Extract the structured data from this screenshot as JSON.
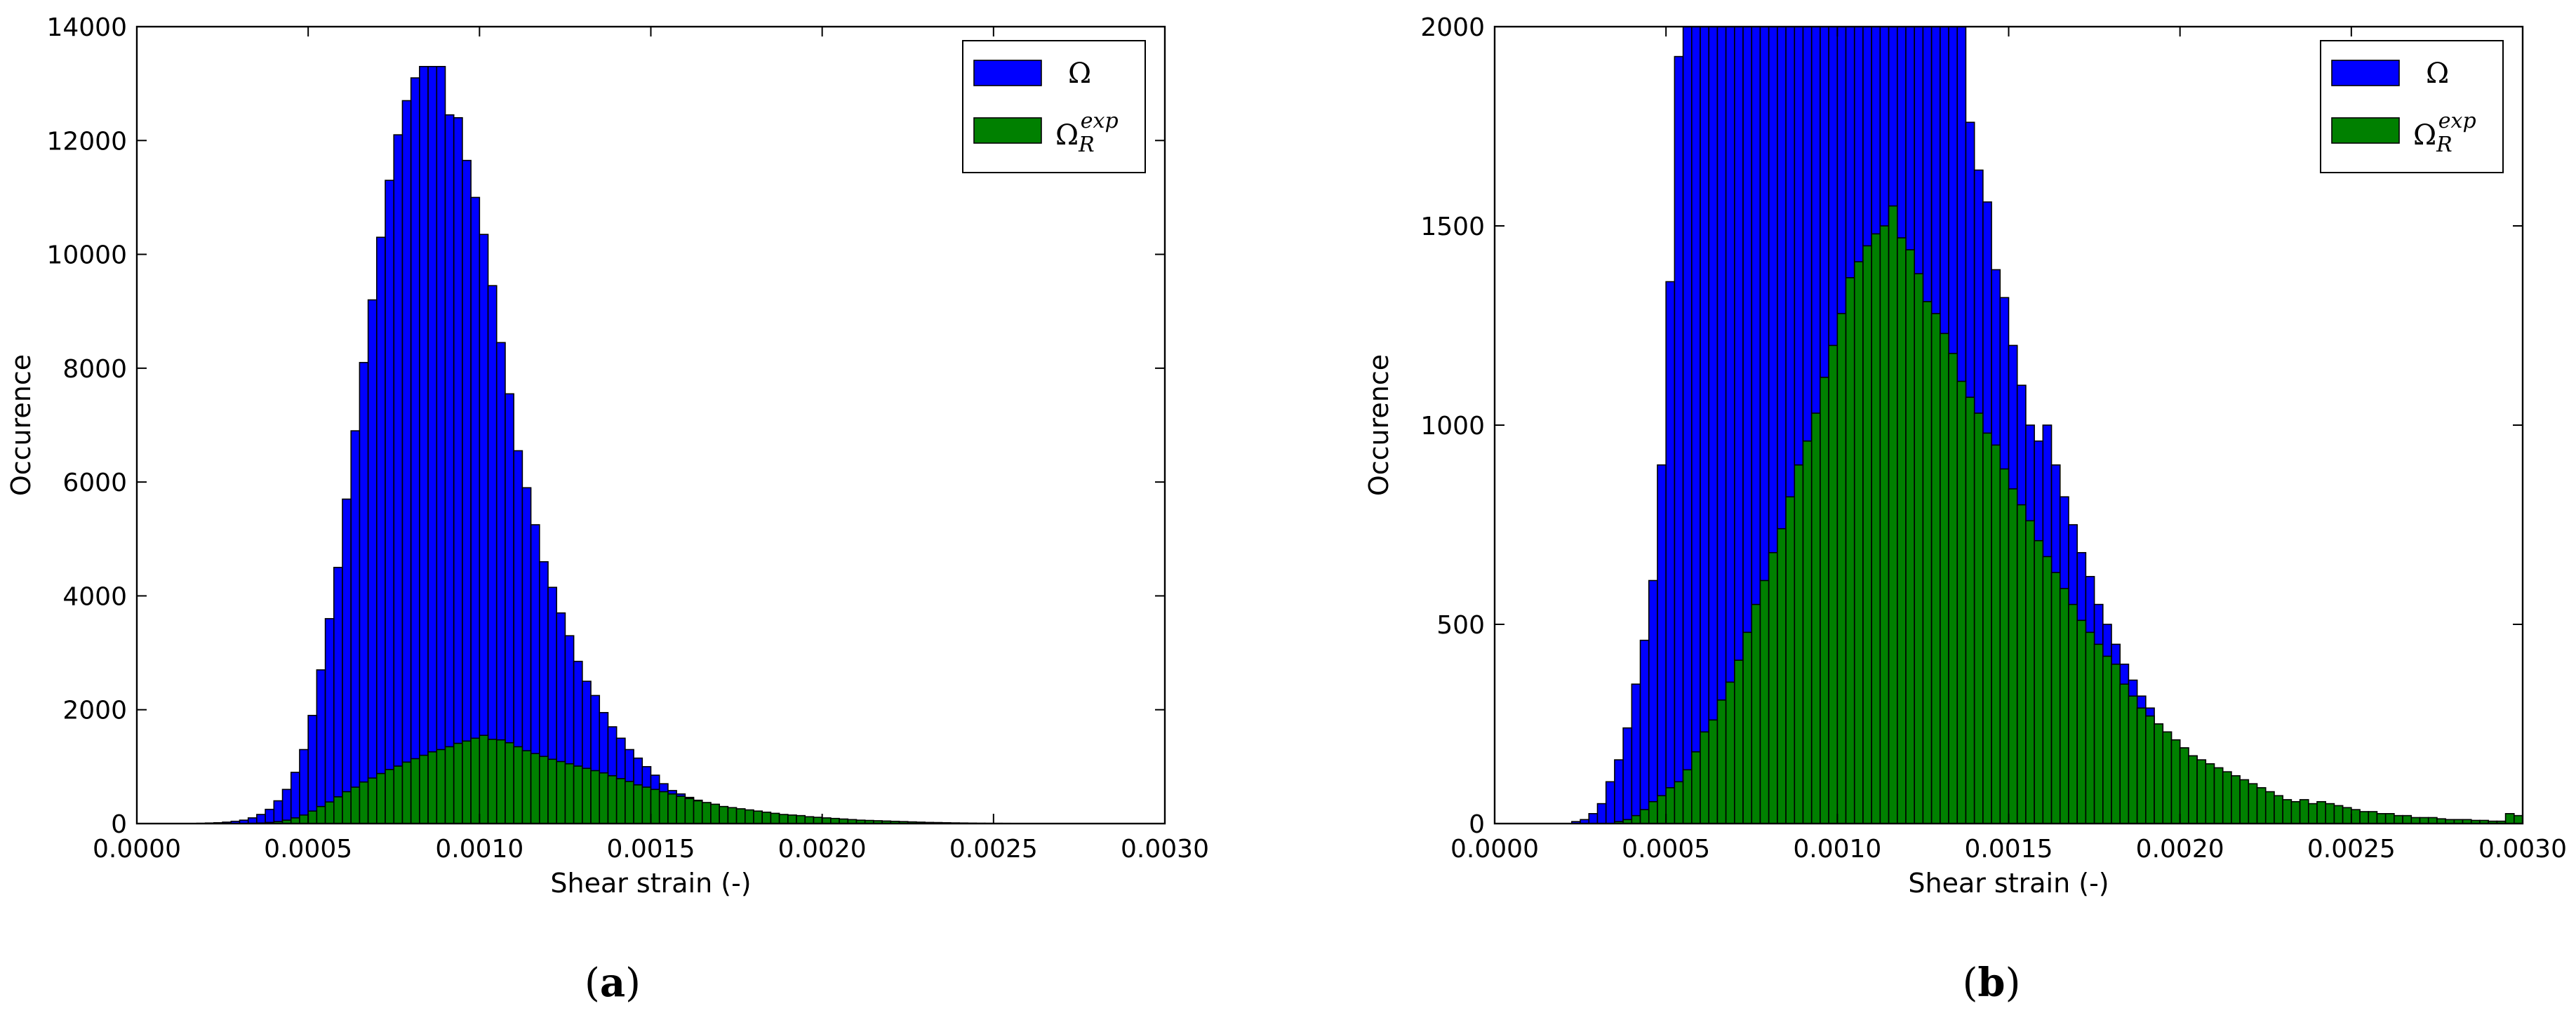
{
  "chart_data": [
    {
      "type": "bar",
      "caption": "(a)",
      "caption_letter": "a",
      "xlabel": "Shear strain (-)",
      "ylabel": "Occurence",
      "xlim": [
        0,
        0.003
      ],
      "ylim": [
        0,
        14000
      ],
      "xticks": [
        "0.0000",
        "0.0005",
        "0.0010",
        "0.0015",
        "0.0020",
        "0.0025",
        "0.0030"
      ],
      "yticks": [
        "0",
        "2000",
        "4000",
        "6000",
        "8000",
        "10000",
        "12000",
        "14000"
      ],
      "bin_width": 2.5e-05,
      "legend": {
        "placement": "top-right"
      },
      "series": [
        {
          "name": "Ω",
          "color": "#0000ff",
          "x_start": 0.000175,
          "values": [
            5,
            10,
            15,
            25,
            40,
            60,
            100,
            160,
            250,
            400,
            600,
            900,
            1300,
            1900,
            2700,
            3600,
            4500,
            5700,
            6900,
            8100,
            9200,
            10300,
            11300,
            12100,
            12700,
            13100,
            13300,
            13300,
            13300,
            12450,
            12400,
            11650,
            11000,
            10350,
            9450,
            8450,
            7550,
            6550,
            5900,
            5250,
            4600,
            4150,
            3700,
            3300,
            2850,
            2500,
            2250,
            1950,
            1700,
            1500,
            1300,
            1150,
            1000,
            850,
            700,
            580,
            520,
            460,
            410,
            360,
            320,
            280,
            250,
            220,
            200,
            180,
            160,
            140,
            120,
            100,
            90,
            80,
            70,
            60,
            50,
            45,
            40,
            35,
            30,
            25,
            20,
            15,
            10,
            5,
            5
          ]
        },
        {
          "name": "Ω_R^exp",
          "label_base": "Ω",
          "label_sub": "R",
          "label_sup": "exp",
          "color": "#008000",
          "x_start": 0.000325,
          "values": [
            5,
            10,
            20,
            35,
            60,
            100,
            150,
            220,
            300,
            380,
            470,
            560,
            640,
            730,
            800,
            880,
            950,
            1010,
            1080,
            1140,
            1200,
            1260,
            1300,
            1350,
            1410,
            1450,
            1500,
            1550,
            1480,
            1470,
            1420,
            1350,
            1280,
            1230,
            1180,
            1130,
            1090,
            1050,
            1010,
            970,
            930,
            890,
            840,
            790,
            740,
            680,
            640,
            600,
            560,
            520,
            480,
            440,
            400,
            370,
            340,
            300,
            280,
            260,
            240,
            220,
            200,
            180,
            160,
            150,
            140,
            120,
            110,
            100,
            90,
            80,
            70,
            60,
            55,
            50,
            45,
            40,
            35,
            30,
            25,
            20,
            18,
            15,
            12,
            10,
            8,
            6,
            5,
            4,
            3,
            2,
            2
          ]
        }
      ]
    },
    {
      "type": "bar",
      "caption": "(b)",
      "caption_letter": "b",
      "xlabel": "Shear strain (-)",
      "ylabel": "Occurence",
      "xlim": [
        0,
        0.003
      ],
      "ylim": [
        0,
        2000
      ],
      "xticks": [
        "0.0000",
        "0.0005",
        "0.0010",
        "0.0015",
        "0.0020",
        "0.0025",
        "0.0030"
      ],
      "yticks": [
        "0",
        "500",
        "1000",
        "1500",
        "2000"
      ],
      "bin_width": 2.5e-05,
      "legend": {
        "placement": "top-right"
      },
      "series": [
        {
          "name": "Ω",
          "color": "#0000ff",
          "x_start": 0.000225,
          "values": [
            5,
            10,
            25,
            50,
            105,
            160,
            240,
            350,
            460,
            610,
            900,
            1360,
            1925,
            2000,
            2000,
            2000,
            2000,
            2000,
            2000,
            2000,
            2000,
            2000,
            2000,
            2000,
            2000,
            2000,
            2000,
            2000,
            2000,
            2000,
            2000,
            2000,
            2000,
            2000,
            2000,
            2000,
            2000,
            2000,
            2000,
            2000,
            2000,
            2000,
            2000,
            2000,
            2000,
            2000,
            1760,
            1640,
            1560,
            1390,
            1320,
            1200,
            1100,
            1000,
            960,
            1000,
            900,
            820,
            750,
            680,
            620,
            550,
            500,
            450,
            400,
            360,
            320,
            290,
            250,
            230,
            210,
            190,
            170,
            150,
            140,
            130,
            115,
            100,
            90,
            80,
            70,
            60,
            55,
            50,
            45,
            40,
            35,
            30,
            25,
            20,
            18,
            15,
            12,
            10,
            8,
            6,
            5,
            4,
            3,
            2,
            2,
            1,
            1,
            1,
            1,
            1
          ]
        },
        {
          "name": "Ω_R^exp",
          "label_base": "Ω",
          "label_sub": "R",
          "label_sup": "exp",
          "color": "#008000",
          "x_start": 0.00035,
          "values": [
            5,
            10,
            20,
            35,
            55,
            70,
            90,
            105,
            135,
            180,
            230,
            260,
            310,
            355,
            410,
            480,
            550,
            610,
            680,
            740,
            820,
            900,
            960,
            1030,
            1120,
            1200,
            1280,
            1370,
            1410,
            1450,
            1480,
            1500,
            1550,
            1470,
            1440,
            1380,
            1310,
            1280,
            1230,
            1180,
            1110,
            1070,
            1030,
            980,
            950,
            890,
            840,
            800,
            760,
            710,
            670,
            630,
            590,
            550,
            510,
            480,
            450,
            420,
            400,
            350,
            320,
            290,
            270,
            250,
            230,
            210,
            190,
            170,
            160,
            150,
            140,
            130,
            120,
            110,
            100,
            90,
            80,
            70,
            60,
            55,
            60,
            50,
            55,
            50,
            45,
            40,
            35,
            30,
            30,
            25,
            25,
            20,
            20,
            15,
            15,
            15,
            12,
            10,
            10,
            10,
            8,
            8,
            6,
            6,
            25,
            20,
            18,
            25,
            20,
            20
          ]
        }
      ]
    }
  ]
}
